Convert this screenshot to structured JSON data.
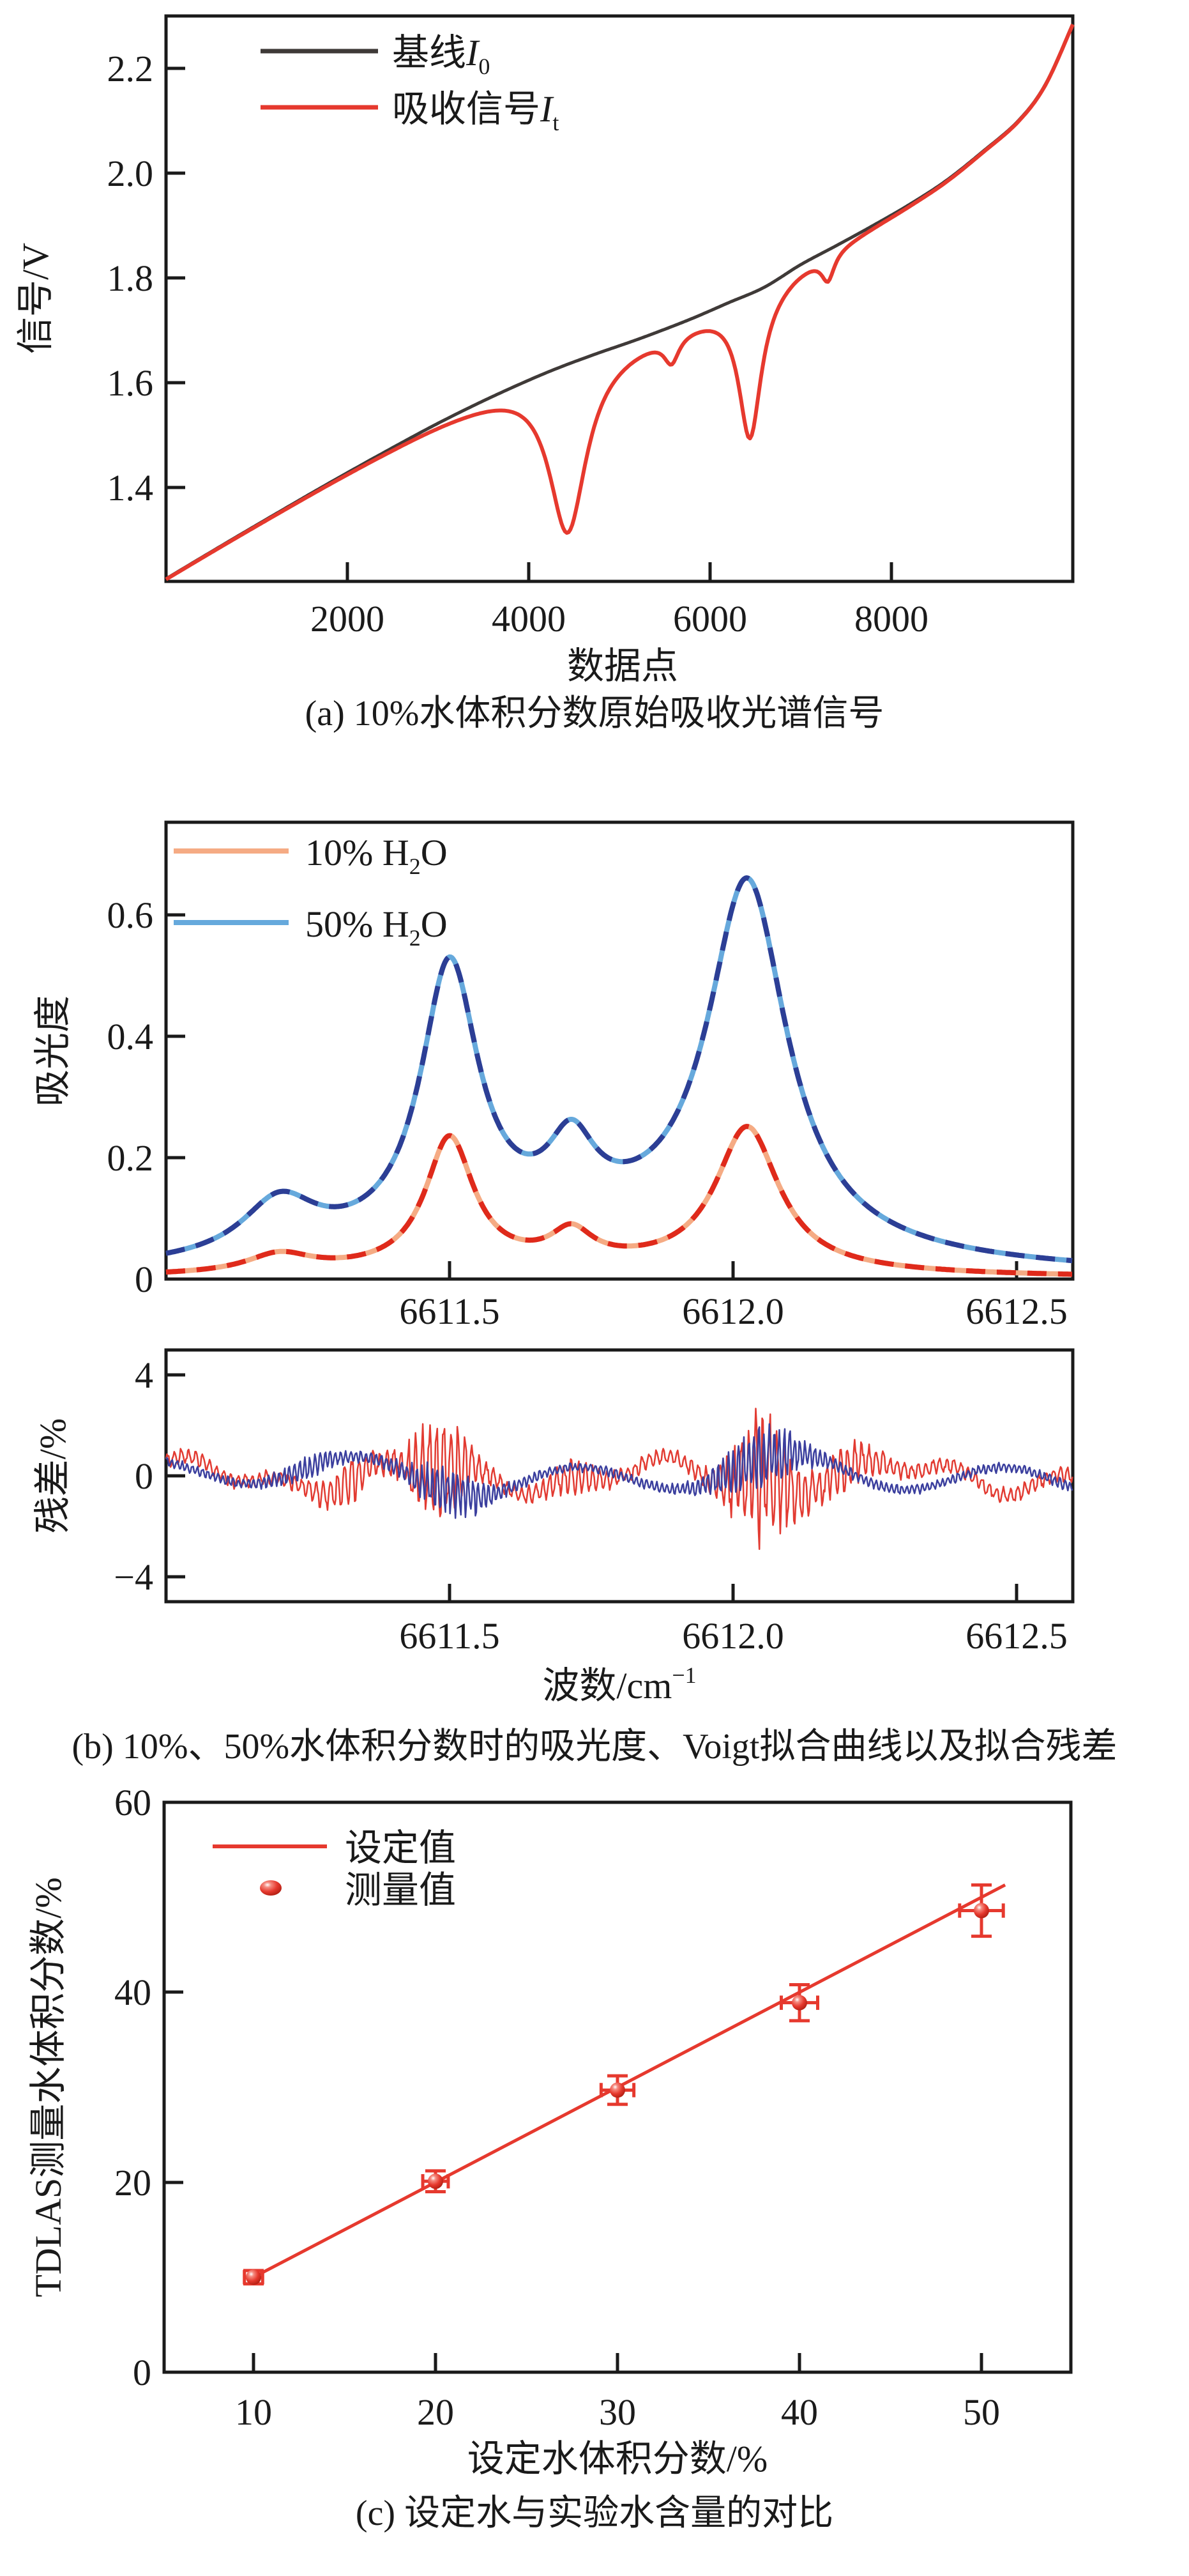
{
  "figure": {
    "captions": {
      "a": "(a) 10%水体积分数原始吸收光谱信号",
      "b": "(b) 10%、50%水体积分数时的吸光度、Voigt拟合曲线以及拟合残差",
      "c": "(c) 设定水与实验水含量的对比"
    }
  },
  "colors": {
    "axis": "#1a1a1a",
    "baseline_black": "#3f3a38",
    "signal_red": "#e6392e",
    "h2o10_solid": "#f5ab84",
    "h2o10_dash": "#df2a1b",
    "h2o50_solid": "#66a9dc",
    "h2o50_dash": "#2c3e95",
    "residual_10": "#e23b32",
    "residual_50": "#3b3f9e"
  },
  "chart_data": [
    {
      "panel": "a",
      "type": "line",
      "xlabel": "数据点",
      "ylabel": "信号/V",
      "xlim": [
        0,
        10000
      ],
      "ylim": [
        1.22,
        2.3
      ],
      "x_ticks": [
        2000,
        4000,
        6000,
        8000
      ],
      "y_ticks": [
        1.4,
        1.6,
        1.8,
        2.0,
        2.2
      ],
      "x_tick_labels": [
        "2000",
        "4000",
        "6000",
        "8000"
      ],
      "y_tick_labels": [
        "1.4",
        "1.6",
        "1.8",
        "2.0",
        "2.2"
      ],
      "grid": false,
      "legend_position": "upper-left",
      "series": [
        {
          "name": "baseline I0",
          "legend": {
            "text": "基线",
            "symbol": "I",
            "sub": "0"
          },
          "color": "#3f3a38",
          "anchors": [
            [
              0,
              1.225
            ],
            [
              600,
              1.287
            ],
            [
              1200,
              1.348
            ],
            [
              1800,
              1.408
            ],
            [
              2400,
              1.466
            ],
            [
              3000,
              1.522
            ],
            [
              3600,
              1.573
            ],
            [
              4200,
              1.619
            ],
            [
              4700,
              1.652
            ],
            [
              5100,
              1.676
            ],
            [
              5400,
              1.695
            ],
            [
              5800,
              1.722
            ],
            [
              6200,
              1.752
            ],
            [
              6600,
              1.782
            ],
            [
              7000,
              1.825
            ],
            [
              7400,
              1.862
            ],
            [
              7800,
              1.9
            ],
            [
              8200,
              1.94
            ],
            [
              8600,
              1.985
            ],
            [
              9000,
              2.04
            ],
            [
              9400,
              2.1
            ],
            [
              9700,
              2.17
            ],
            [
              10000,
              2.285
            ]
          ]
        },
        {
          "name": "absorption signal It",
          "legend": {
            "text": "吸收信号",
            "symbol": "I",
            "sub": "t"
          },
          "color": "#e6392e",
          "model": "baseline_minus_lorentzian_dips",
          "dips": [
            {
              "center": 4430,
              "depth": 0.32,
              "hwhm": 250
            },
            {
              "center": 5575,
              "depth": 0.05,
              "hwhm": 100
            },
            {
              "center": 6440,
              "depth": 0.27,
              "hwhm": 150
            },
            {
              "center": 7300,
              "depth": 0.05,
              "hwhm": 85
            }
          ],
          "key_values": {
            "dip1_min_V": 1.31,
            "dip2_min_V": 1.66,
            "dip3_min_V": 1.5,
            "dip4_min_V": 1.86
          }
        }
      ]
    },
    {
      "panel": "b-absorbance",
      "type": "line",
      "ylabel": "吸光度",
      "xlim": [
        6611.0,
        6612.6
      ],
      "ylim": [
        0,
        0.75
      ],
      "x_ticks": [
        6611.5,
        6612.0,
        6612.5
      ],
      "y_ticks": [
        0,
        0.2,
        0.4,
        0.6
      ],
      "x_tick_labels": [
        "6611.5",
        "6612.0",
        "6612.5"
      ],
      "y_tick_labels": [
        "0",
        "0.2",
        "0.4",
        "0.6"
      ],
      "grid": false,
      "legend_position": "upper-left",
      "series": [
        {
          "name": "10% H2O",
          "legend": {
            "pre": "10% H",
            "sub": "2",
            "post": "O"
          },
          "solid_color": "#f5ab84",
          "dash_color": "#df2a1b",
          "peaks": [
            [
              6611.75,
              0.018,
              0.45
            ],
            [
              6611.2,
              0.03,
              0.07
            ],
            [
              6611.5,
              0.215,
              0.052
            ],
            [
              6611.715,
              0.05,
              0.045
            ],
            [
              6612.025,
              0.235,
              0.068
            ]
          ],
          "key_values": {
            "peak_6611_5": 0.235,
            "mid_peak": 0.09,
            "peak_6612_0": 0.25
          }
        },
        {
          "name": "50% H2O",
          "legend": {
            "pre": "50% H",
            "sub": "2",
            "post": "O"
          },
          "solid_color": "#66a9dc",
          "dash_color": "#2c3e95",
          "peaks": [
            [
              6611.75,
              0.07,
              0.45
            ],
            [
              6611.2,
              0.09,
              0.08
            ],
            [
              6611.5,
              0.45,
              0.062
            ],
            [
              6611.715,
              0.115,
              0.05
            ],
            [
              6612.025,
              0.6,
              0.085
            ]
          ],
          "key_values": {
            "peak_6611_5": 0.52,
            "mid_peak": 0.26,
            "peak_6612_0": 0.66
          }
        }
      ]
    },
    {
      "panel": "b-residual",
      "type": "line",
      "ylabel": "残差/%",
      "xlabel_parts": {
        "pre": "波数/cm",
        "sup": "−1"
      },
      "xlim": [
        6611.0,
        6612.6
      ],
      "ylim": [
        -5,
        5
      ],
      "x_ticks": [
        6611.5,
        6612.0,
        6612.5
      ],
      "y_ticks": [
        -4,
        0,
        4
      ],
      "x_tick_labels": [
        "6611.5",
        "6612.0",
        "6612.5"
      ],
      "y_tick_labels": [
        "−4",
        "0",
        "4"
      ],
      "grid": false,
      "series": [
        {
          "name": "10% fit residual",
          "color": "#e23b32",
          "seed": 11,
          "period": 0.0125,
          "slow": [
            [
              0.5,
              0.42,
              1.1
            ],
            [
              0.3,
              0.17,
              0.4
            ]
          ],
          "env_base": 0.35,
          "env": [
            [
              2.1,
              6611.48,
              0.055
            ],
            [
              2.6,
              6612.05,
              0.06
            ],
            [
              0.7,
              6611.32,
              0.05
            ],
            [
              0.7,
              6612.2,
              0.06
            ],
            [
              0.45,
              6611.72,
              0.05
            ]
          ]
        },
        {
          "name": "50% fit residual",
          "color": "#3b3f9e",
          "seed": 5,
          "period": 0.009,
          "slow": [
            [
              0.6,
              0.38,
              2.2
            ],
            [
              0.3,
              0.9,
              0.2
            ]
          ],
          "env_base": 0.22,
          "env": [
            [
              0.9,
              6611.5,
              0.07
            ],
            [
              1.2,
              6612.05,
              0.08
            ],
            [
              0.35,
              6611.25,
              0.06
            ]
          ]
        }
      ]
    },
    {
      "panel": "c",
      "type": "scatter",
      "xlabel": "设定水体积分数/%",
      "ylabel": "TDLAS测量水体积分数/%",
      "xlim": [
        5,
        55
      ],
      "ylim": [
        0,
        60
      ],
      "x_ticks": [
        10,
        20,
        30,
        40,
        50
      ],
      "y_ticks": [
        0,
        20,
        40,
        60
      ],
      "x_tick_labels": [
        "10",
        "20",
        "30",
        "40",
        "50"
      ],
      "y_tick_labels": [
        "0",
        "20",
        "40",
        "60"
      ],
      "grid": false,
      "legend_position": "upper-left",
      "line": {
        "name": "设定值",
        "color": "#e6392e",
        "from": [
          10,
          10
        ],
        "to": [
          51.3,
          51.3
        ]
      },
      "points": {
        "name": "测量值",
        "color": "#e6392e",
        "set_values": [
          10,
          20,
          30,
          40,
          50
        ],
        "measured_values": [
          10.0,
          20.1,
          29.7,
          38.9,
          48.6
        ],
        "y_err": [
          0.7,
          1.1,
          1.5,
          1.9,
          2.7
        ],
        "x_err": [
          0.5,
          0.7,
          0.9,
          1.0,
          1.2
        ]
      }
    }
  ]
}
